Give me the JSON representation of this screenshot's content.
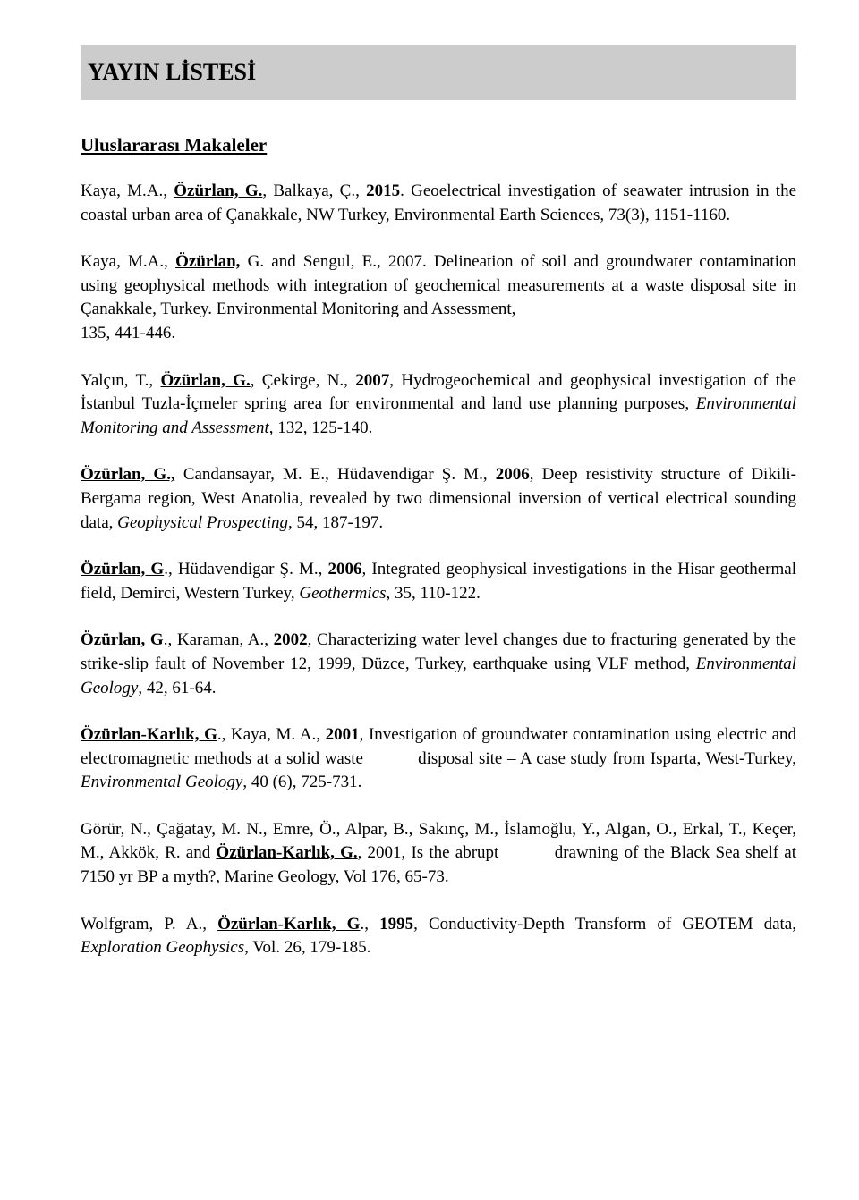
{
  "title": "YAYIN LİSTESİ",
  "section": "Uluslararası Makaleler",
  "entries": [
    {
      "html": "Kaya, M.A., <span class='bu'>Özürlan, G.</span>, Balkaya, Ç., <b>2015</b>. Geoelectrical investigation of seawater intrusion in the coastal urban area of Çanakkale, NW Turkey, Environmental Earth Sciences, 73(3), 1151-1160."
    },
    {
      "html": "Kaya, M.A., <span class='bu'>Özürlan,</span> G. and Sengul, E., 2007. Delineation of soil and groundwater contamination using geophysical methods with integration of geochemical measurements at a waste disposal site in Çanakkale, Turkey. Environmental Monitoring and Assessment,<br>135, 441-446."
    },
    {
      "html": "Yalçın, T., <span class='bu'>Özürlan, G.</span>, Çekirge, N., <b>2007</b>, Hydrogeochemical and geophysical investigation of the İstanbul Tuzla-İçmeler spring area for environmental and land use planning purposes, <i>Environmental Monitoring and Assessment</i>, 132, 125-140."
    },
    {
      "html": "<span class='bu'>Özürlan, G.,</span> Candansayar, M. E., Hüdavendigar Ş. M., <b>2006</b>, Deep resistivity structure of Dikili- Bergama region, West Anatolia, revealed by two dimensional inversion of vertical electrical sounding data, <i>Geophysical Prospecting</i>, 54, 187-197."
    },
    {
      "html": "<span class='bu'>Özürlan, G</span>., Hüdavendigar Ş. M., <b>2006</b>, Integrated geophysical investigations in the Hisar geothermal field, Demirci, Western Turkey, <i>Geothermics</i>, 35, 110-122."
    },
    {
      "html": "<span class='bu'>Özürlan, G</span>., Karaman, A., <b>2002</b>,  Characterizing water level changes due to fracturing generated by  the strike-slip fault of  November 12, 1999, Düzce, Turkey,  earthquake using VLF method, <i>Environmental Geology</i>, 42, 61-64."
    },
    {
      "html": "<b><u>Özürlan-Karlık, G</u></b>., Kaya, M. A., <b>2001</b>, Investigation of groundwater contamination using electric and electromagnetic methods at a solid waste <span class='gap'></span> disposal site – A case study from Isparta, West-Turkey, <i>Environmental Geology</i>, 40 (6), 725-731."
    },
    {
      "html": "Görür, N., Çağatay, M. N., Emre, Ö., Alpar, B., Sakınç, M., İslamoğlu, Y., Algan, O., Erkal, T., Keçer, M., Akkök, R. and <span class='bu'>Özürlan-Karlık, G.</span>, 2001, Is the abrupt <span class='gap'></span> drawning of the Black Sea shelf at 7150 yr BP a myth?, Marine Geology, Vol 176, 65-73."
    },
    {
      "html": "Wolfgram, P. A., <b><u>Özürlan-Karlık, G</u></b>., <b>1995</b>, Conductivity-Depth Transform of GEOTEM data, <i>Exploration Geophysics</i>, Vol. 26, 179-185."
    }
  ]
}
